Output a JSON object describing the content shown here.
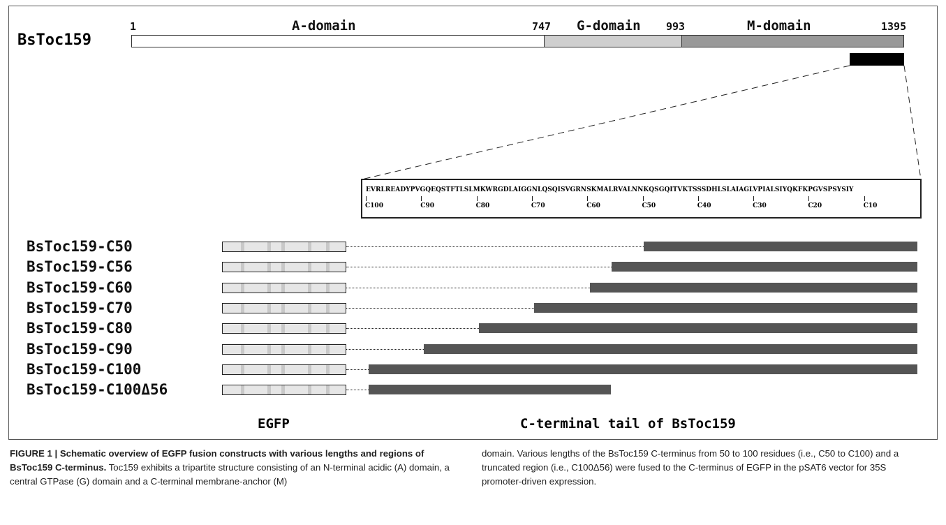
{
  "diagram": {
    "protein": "BsToc159",
    "positions": [
      "1",
      "747",
      "993",
      "1395"
    ],
    "domains": [
      {
        "label": "A-domain",
        "color": "#ffffff"
      },
      {
        "label": "G-domain",
        "color": "#cfcfcf"
      },
      {
        "label": "M-domain",
        "color": "#999999"
      }
    ],
    "sequence": "EVRLREADYPVGQEQSTFTLSLMKWRGDLAIGGNLQSQISVGRNSKMALRVALNNKQSGQITVKTSSSDHLSLAIAGLVPIALSIYQKFKPGVSPSYSIY",
    "tick_labels": [
      "C100",
      "C90",
      "C80",
      "C70",
      "C60",
      "C50",
      "C40",
      "C30",
      "C20",
      "C10"
    ],
    "constructs": [
      {
        "name": "BsToc159-C50"
      },
      {
        "name": "BsToc159-C56"
      },
      {
        "name": "BsToc159-C60"
      },
      {
        "name": "BsToc159-C70"
      },
      {
        "name": "BsToc159-C80"
      },
      {
        "name": "BsToc159-C90"
      },
      {
        "name": "BsToc159-C100"
      },
      {
        "name": "BsToc159-C100Δ56"
      }
    ],
    "egfp_label": "EGFP",
    "tail_label": "C-terminal tail of BsToc159",
    "colors": {
      "tail": "#555555",
      "egfp": "#e6e6e6",
      "egfp_stripe": "#c8c8c8",
      "m_box": "#000000"
    }
  },
  "caption": {
    "title": "FIGURE 1 | Schematic overview of EGFP fusion constructs with various lengths and regions of BsToc159 C-terminus.",
    "text": "Toc159 exhibits a tripartite structure consisting of an N-terminal acidic (A) domain, a central GTPase (G) domain and a C-terminal membrane-anchor (M) domain. Various lengths of the BsToc159 C-terminus from 50 to 100 residues (i.e., C50 to C100) and a truncated region (i.e., C100Δ56) were fused to the C-terminus of EGFP in the pSAT6 vector for 35S promoter-driven expression."
  }
}
